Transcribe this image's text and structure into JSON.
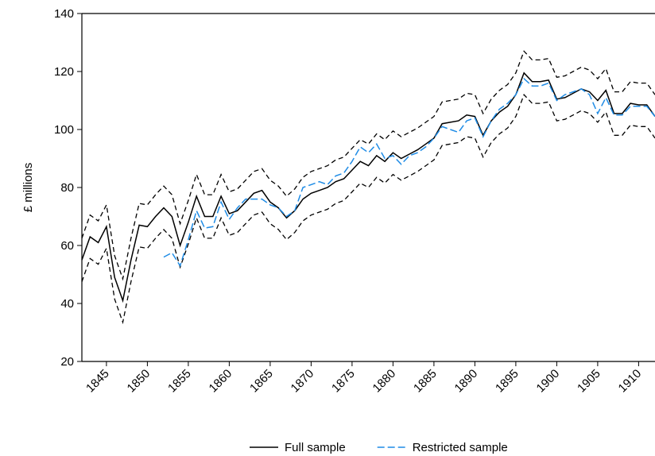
{
  "chart_data": {
    "type": "line",
    "ylabel": "£ millions",
    "xlim": [
      1842,
      1912
    ],
    "ylim": [
      20,
      140
    ],
    "xticks": [
      1845,
      1850,
      1855,
      1860,
      1865,
      1870,
      1875,
      1880,
      1885,
      1890,
      1895,
      1900,
      1905,
      1910
    ],
    "yticks": [
      20,
      40,
      60,
      80,
      100,
      120,
      140
    ],
    "x": [
      1842,
      1843,
      1844,
      1845,
      1846,
      1847,
      1848,
      1849,
      1850,
      1851,
      1852,
      1853,
      1854,
      1855,
      1856,
      1857,
      1858,
      1859,
      1860,
      1861,
      1862,
      1863,
      1864,
      1865,
      1866,
      1867,
      1868,
      1869,
      1870,
      1871,
      1872,
      1873,
      1874,
      1875,
      1876,
      1877,
      1878,
      1879,
      1880,
      1881,
      1882,
      1883,
      1884,
      1885,
      1886,
      1887,
      1888,
      1889,
      1890,
      1891,
      1892,
      1893,
      1894,
      1895,
      1896,
      1897,
      1898,
      1899,
      1900,
      1901,
      1902,
      1903,
      1904,
      1905,
      1906,
      1907,
      1908,
      1909,
      1910,
      1911,
      1912
    ],
    "series": [
      {
        "name": "Full sample",
        "color": "#000000",
        "dashed": false,
        "values": [
          55,
          63,
          61,
          66.5,
          49,
          41,
          55,
          67,
          66.5,
          70,
          73,
          70,
          60,
          68,
          77,
          70,
          70,
          77,
          71,
          72,
          75,
          78,
          79,
          75,
          73,
          69.5,
          72,
          76,
          78,
          79,
          80,
          82,
          83,
          86,
          89,
          87.5,
          91,
          89,
          92,
          90,
          91.5,
          93,
          95,
          97,
          102,
          102.5,
          103,
          105,
          104.5,
          98,
          103,
          106,
          108,
          112,
          119.5,
          116.5,
          116.5,
          117,
          110.5,
          111,
          112.5,
          114,
          113,
          110,
          113.5,
          105.5,
          105.5,
          109,
          108.5,
          108.5,
          104.5
        ]
      },
      {
        "name": "Restricted sample",
        "color": "#1f8ce6",
        "dashed": true,
        "values": [
          null,
          null,
          null,
          null,
          null,
          null,
          null,
          null,
          null,
          null,
          56,
          57.5,
          53,
          62,
          72,
          66,
          66.5,
          75,
          69,
          73,
          76,
          76,
          76,
          74,
          73,
          70,
          72,
          80,
          81,
          82,
          81,
          84,
          85,
          89,
          94,
          92,
          95,
          90,
          91,
          88,
          91,
          92,
          94,
          97,
          101,
          100,
          99,
          103,
          104,
          97.5,
          103,
          107,
          109,
          112,
          117.5,
          115,
          115,
          116,
          110,
          112,
          113,
          114,
          112,
          105.5,
          111,
          105,
          105,
          108,
          108,
          108,
          104.5
        ]
      }
    ],
    "bands": {
      "color": "#000000",
      "upper": [
        62.5,
        70.5,
        68.5,
        74,
        56.5,
        48.5,
        62.5,
        74.5,
        74,
        77.5,
        80.5,
        77.5,
        67.5,
        75.5,
        84.5,
        77.5,
        77.5,
        84.5,
        78.5,
        79.5,
        82.5,
        85.5,
        86.5,
        82.5,
        80.5,
        77,
        79.5,
        83.5,
        85.5,
        86.5,
        87.5,
        89.5,
        90.5,
        93.5,
        96.5,
        95,
        98.5,
        96.5,
        99.5,
        97.5,
        99,
        100.5,
        102.5,
        104.5,
        109.5,
        110,
        110.5,
        112.5,
        112,
        105.5,
        110.5,
        113.5,
        115.5,
        119.5,
        127,
        124,
        124,
        124.5,
        118,
        118.5,
        120,
        121.5,
        120.5,
        117.5,
        121,
        113,
        113,
        116.5,
        116,
        116,
        112
      ],
      "lower": [
        47.5,
        55.5,
        53.5,
        59,
        41.5,
        33.5,
        47.5,
        59.5,
        59,
        62.5,
        65.5,
        62.5,
        52.5,
        60.5,
        69.5,
        62.5,
        62.5,
        69.5,
        63.5,
        64.5,
        67.5,
        70.5,
        71.5,
        67.5,
        65.5,
        62,
        64.5,
        68.5,
        70.5,
        71.5,
        72.5,
        74.5,
        75.5,
        78.5,
        81.5,
        80,
        83.5,
        81.5,
        84.5,
        82.5,
        84,
        85.5,
        87.5,
        89.5,
        94.5,
        95,
        95.5,
        97.5,
        97,
        90.5,
        95.5,
        98.5,
        100.5,
        104.5,
        112,
        109,
        109,
        109.5,
        103,
        103.5,
        105,
        106.5,
        105.5,
        102.5,
        106,
        98,
        98,
        101.5,
        101,
        101,
        97
      ]
    }
  }
}
